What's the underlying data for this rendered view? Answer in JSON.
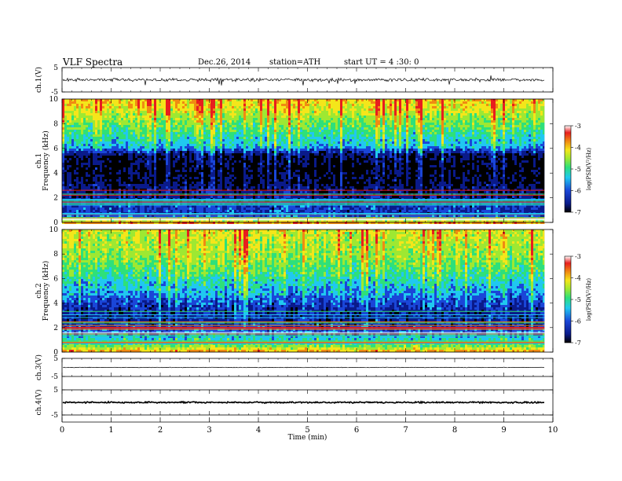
{
  "header": {
    "title": "VLF  Spectra",
    "date": "Dec.26, 2014",
    "station": "station=ATH",
    "start": "start  UT  =   4  :30: 0"
  },
  "colors": {
    "spec_ramp": [
      "#000000",
      "#0a1a8a",
      "#1a46d8",
      "#20c8f0",
      "#2ee07a",
      "#9ee832",
      "#f4e61a",
      "#f08a12",
      "#e81e1e",
      "#ffffff"
    ],
    "trace": "#000000"
  },
  "chart_data": [
    {
      "type": "line",
      "title": "",
      "ylabel": "ch.1(V)",
      "yticks": [
        "5",
        "-5"
      ],
      "ylim": [
        -5,
        5
      ],
      "xlim": [
        0,
        10
      ],
      "x_end": 9.83,
      "series": [
        {
          "baseline": 0.0,
          "noise_band": 0.8,
          "spikes_max": 2.5
        }
      ]
    },
    {
      "type": "heatmap",
      "ylabel": [
        "ch.1",
        "Frequency  (kHz)"
      ],
      "yticks": [
        "10",
        "8",
        "6",
        "4",
        "2",
        "0"
      ],
      "ylim": [
        0,
        10
      ],
      "xlim": [
        0,
        10
      ],
      "x_end": 9.83,
      "colorbar": {
        "label": "log(PSD(V²/Hz)",
        "ticks": [
          "-3",
          "-4",
          "-5",
          "-6",
          "-7"
        ],
        "range": [
          -7,
          -3
        ]
      },
      "profile_kHz": [
        [
          0.0,
          -3.4
        ],
        [
          0.35,
          -4.6
        ],
        [
          0.6,
          -5.8
        ],
        [
          0.9,
          -6.1
        ],
        [
          1.3,
          -6.0
        ],
        [
          1.8,
          -6.2
        ],
        [
          2.2,
          -6.4
        ],
        [
          2.8,
          -6.5
        ],
        [
          3.5,
          -6.7
        ],
        [
          4.5,
          -6.8
        ],
        [
          5.5,
          -6.6
        ],
        [
          5.9,
          -6.0
        ],
        [
          6.2,
          -5.5
        ],
        [
          6.8,
          -5.3
        ],
        [
          7.5,
          -5.0
        ],
        [
          8.5,
          -4.6
        ],
        [
          9.3,
          -4.2
        ],
        [
          10.0,
          -4.0
        ]
      ]
    },
    {
      "type": "heatmap",
      "ylabel": [
        "ch.2",
        "Frequency  (kHz)"
      ],
      "yticks": [
        "10",
        "8",
        "6",
        "4",
        "2",
        "0"
      ],
      "ylim": [
        0,
        10
      ],
      "xlim": [
        0,
        10
      ],
      "x_end": 9.83,
      "colorbar": {
        "label": "log(PSD(V²/Hz)",
        "ticks": [
          "-3",
          "-4",
          "-5",
          "-6",
          "-7"
        ],
        "range": [
          -7,
          -3
        ]
      },
      "profile_kHz": [
        [
          0.0,
          -3.6
        ],
        [
          0.4,
          -4.6
        ],
        [
          0.8,
          -5.0
        ],
        [
          1.3,
          -5.5
        ],
        [
          1.9,
          -6.0
        ],
        [
          2.5,
          -6.3
        ],
        [
          3.2,
          -6.3
        ],
        [
          4.0,
          -6.0
        ],
        [
          4.8,
          -5.6
        ],
        [
          5.5,
          -5.4
        ],
        [
          6.5,
          -5.0
        ],
        [
          7.5,
          -4.7
        ],
        [
          8.5,
          -4.5
        ],
        [
          9.3,
          -4.4
        ],
        [
          10.0,
          -4.3
        ]
      ]
    },
    {
      "type": "line",
      "ylabel": "ch.3(V)",
      "yticks": [
        "5",
        "-5"
      ],
      "ylim": [
        -5,
        5
      ],
      "xlim": [
        0,
        10
      ],
      "x_end": 9.83,
      "series": [
        {
          "baseline": 0.0,
          "noise_band": 0.2
        }
      ]
    },
    {
      "type": "line",
      "ylabel": "ch.4(V)",
      "yticks": [
        "5",
        "-5"
      ],
      "ylim": [
        -5,
        5
      ],
      "xlim": [
        0,
        10
      ],
      "x_end": 9.83,
      "series": [
        {
          "baseline": 0.0,
          "noise_band": 0.35
        }
      ]
    }
  ],
  "x_axis": {
    "label": "Time  (min)",
    "ticks": [
      "0",
      "1",
      "2",
      "3",
      "4",
      "5",
      "6",
      "7",
      "8",
      "9",
      "10"
    ],
    "range": [
      0,
      10
    ]
  }
}
